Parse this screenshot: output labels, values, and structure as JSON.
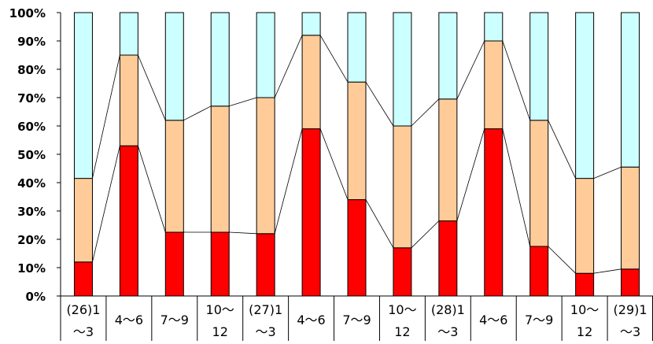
{
  "chart_data": {
    "type": "bar",
    "stacked": true,
    "percent": true,
    "categories": [
      [
        "(26)1",
        "～3"
      ],
      [
        "4～6"
      ],
      [
        "7～9"
      ],
      [
        "10～",
        "12"
      ],
      [
        "(27)1",
        "～3"
      ],
      [
        "4～6"
      ],
      [
        "7～9"
      ],
      [
        "10～",
        "12"
      ],
      [
        "(28)1",
        "～3"
      ],
      [
        "4～6"
      ],
      [
        "7～9"
      ],
      [
        "10～",
        "12"
      ],
      [
        "(29)1",
        "～3"
      ]
    ],
    "series": [
      {
        "color": "#ff0000",
        "values": [
          12,
          53,
          22.5,
          22.5,
          22,
          59,
          34,
          17,
          26.5,
          59,
          17.5,
          8,
          9.5
        ]
      },
      {
        "color": "#ffcc99",
        "values": [
          29.5,
          32,
          39.5,
          44.5,
          48,
          33,
          41.5,
          43,
          43,
          31,
          44.5,
          33.5,
          36
        ]
      },
      {
        "color": "#ccffff",
        "values": [
          58.5,
          15,
          38,
          33,
          30,
          8,
          24.5,
          40,
          30.5,
          10,
          38,
          58.5,
          54.5
        ]
      }
    ],
    "yticks": [
      "0%",
      "10%",
      "20%",
      "30%",
      "40%",
      "50%",
      "60%",
      "70%",
      "80%",
      "90%",
      "100%"
    ],
    "ylim": [
      0,
      100
    ],
    "series_lines": true,
    "grid": false
  }
}
